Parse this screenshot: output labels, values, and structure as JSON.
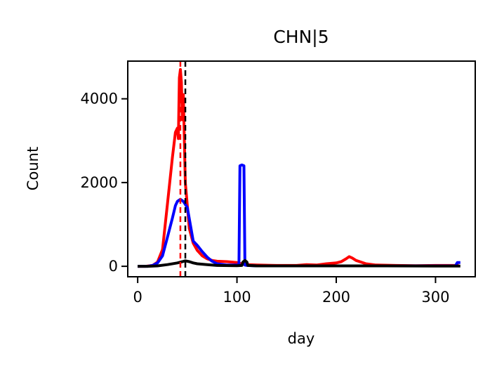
{
  "chart_data": {
    "type": "line",
    "title": "CHN|5",
    "xlabel": "day",
    "ylabel": "Count",
    "xlim": [
      -10,
      340
    ],
    "ylim": [
      -250,
      4900
    ],
    "xticks": [
      0,
      100,
      200,
      300
    ],
    "yticks": [
      0,
      2000,
      4000
    ],
    "grid": false,
    "series": [
      {
        "color": "#ff0000",
        "points": [
          [
            0,
            0
          ],
          [
            8,
            0
          ],
          [
            15,
            20
          ],
          [
            20,
            100
          ],
          [
            25,
            400
          ],
          [
            30,
            1500
          ],
          [
            35,
            2600
          ],
          [
            38,
            3200
          ],
          [
            40,
            3300
          ],
          [
            41,
            3050
          ],
          [
            42,
            4500
          ],
          [
            43,
            4700
          ],
          [
            44,
            4400
          ],
          [
            45,
            3500
          ],
          [
            46,
            4100
          ],
          [
            47,
            3000
          ],
          [
            48,
            2000
          ],
          [
            52,
            900
          ],
          [
            56,
            550
          ],
          [
            60,
            380
          ],
          [
            65,
            250
          ],
          [
            70,
            180
          ],
          [
            75,
            140
          ],
          [
            80,
            120
          ],
          [
            90,
            110
          ],
          [
            95,
            100
          ],
          [
            100,
            90
          ],
          [
            105,
            60
          ],
          [
            110,
            40
          ],
          [
            120,
            30
          ],
          [
            140,
            20
          ],
          [
            160,
            20
          ],
          [
            170,
            40
          ],
          [
            180,
            30
          ],
          [
            190,
            60
          ],
          [
            200,
            80
          ],
          [
            205,
            110
          ],
          [
            210,
            180
          ],
          [
            213,
            230
          ],
          [
            216,
            200
          ],
          [
            220,
            140
          ],
          [
            230,
            60
          ],
          [
            240,
            30
          ],
          [
            260,
            20
          ],
          [
            280,
            15
          ],
          [
            300,
            20
          ],
          [
            320,
            20
          ],
          [
            323,
            60
          ]
        ]
      },
      {
        "color": "#0000ff",
        "points": [
          [
            0,
            0
          ],
          [
            10,
            0
          ],
          [
            15,
            20
          ],
          [
            20,
            80
          ],
          [
            25,
            250
          ],
          [
            30,
            700
          ],
          [
            35,
            1150
          ],
          [
            38,
            1450
          ],
          [
            40,
            1550
          ],
          [
            43,
            1600
          ],
          [
            46,
            1550
          ],
          [
            50,
            1400
          ],
          [
            53,
            1000
          ],
          [
            56,
            600
          ],
          [
            60,
            500
          ],
          [
            65,
            350
          ],
          [
            70,
            220
          ],
          [
            75,
            120
          ],
          [
            80,
            60
          ],
          [
            90,
            30
          ],
          [
            100,
            30
          ],
          [
            102,
            40
          ],
          [
            103,
            2400
          ],
          [
            105,
            2420
          ],
          [
            107,
            2400
          ],
          [
            108,
            30
          ],
          [
            110,
            20
          ],
          [
            120,
            10
          ],
          [
            150,
            10
          ],
          [
            200,
            10
          ],
          [
            250,
            10
          ],
          [
            300,
            10
          ],
          [
            320,
            10
          ],
          [
            322,
            90
          ],
          [
            325,
            90
          ]
        ]
      },
      {
        "color": "#000000",
        "points": [
          [
            0,
            0
          ],
          [
            10,
            0
          ],
          [
            20,
            10
          ],
          [
            30,
            40
          ],
          [
            40,
            80
          ],
          [
            45,
            110
          ],
          [
            48,
            130
          ],
          [
            52,
            110
          ],
          [
            56,
            80
          ],
          [
            60,
            60
          ],
          [
            70,
            40
          ],
          [
            80,
            20
          ],
          [
            100,
            15
          ],
          [
            105,
            20
          ],
          [
            106,
            100
          ],
          [
            108,
            140
          ],
          [
            110,
            100
          ],
          [
            111,
            20
          ],
          [
            120,
            10
          ],
          [
            160,
            10
          ],
          [
            200,
            10
          ],
          [
            250,
            10
          ],
          [
            300,
            5
          ],
          [
            325,
            5
          ]
        ]
      }
    ],
    "vlines": [
      {
        "x": 43,
        "color": "#ff0000",
        "style": "dashed"
      },
      {
        "x": 48,
        "color": "#000000",
        "style": "dashed"
      }
    ]
  }
}
